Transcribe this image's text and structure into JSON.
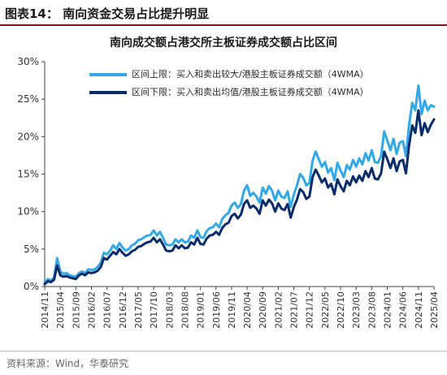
{
  "figure_title": "图表14：  南向资金交易占比提升明显",
  "source": "资料来源：Wind，华泰研究",
  "colors": {
    "upper": "#32a8e6",
    "lower": "#0b2c6b",
    "accent_rule": "#8a1414"
  },
  "chart_data": {
    "type": "line",
    "title": "南向成交额占港交所主板证券成交额占比区间",
    "xlabel": "",
    "ylabel": "",
    "ylim": [
      0,
      30
    ],
    "yticks": [
      "0%",
      "5%",
      "10%",
      "15%",
      "20%",
      "25%",
      "30%"
    ],
    "xticks": [
      "2014/11",
      "2015/04",
      "2015/09",
      "2016/02",
      "2016/07",
      "2016/12",
      "2017/05",
      "2017/10",
      "2018/03",
      "2018/08",
      "2019/01",
      "2019/06",
      "2019/11",
      "2020/04",
      "2020/09",
      "2021/02",
      "2021/07",
      "2021/12",
      "2022/05",
      "2022/10",
      "2023/03",
      "2023/08",
      "2024/01",
      "2024/06",
      "2024/11",
      "2025/04"
    ],
    "grid": false,
    "legend_position": "top-left",
    "x_unit": "months since 2014/11",
    "series": [
      {
        "name": "区间上限：买入和卖出较大/港股主板证券成交额（4WMA）",
        "x": [
          0,
          1,
          2,
          3,
          4,
          5,
          6,
          7,
          8,
          9,
          10,
          11,
          12,
          13,
          14,
          15,
          16,
          17,
          18,
          19,
          20,
          21,
          22,
          23,
          24,
          25,
          26,
          27,
          28,
          29,
          30,
          31,
          32,
          33,
          34,
          35,
          36,
          37,
          38,
          39,
          40,
          41,
          42,
          43,
          44,
          45,
          46,
          47,
          48,
          49,
          50,
          51,
          52,
          53,
          54,
          55,
          56,
          57,
          58,
          59,
          60,
          61,
          62,
          63,
          64,
          65,
          66,
          67,
          68,
          69,
          70,
          71,
          72,
          73,
          74,
          75,
          76,
          77,
          78,
          79,
          80,
          81,
          82,
          83,
          84,
          85,
          86,
          87,
          88,
          89,
          90,
          91,
          92,
          93,
          94,
          95,
          96,
          97,
          98,
          99,
          100,
          101,
          102,
          103,
          104,
          105,
          106,
          107,
          108,
          109,
          110,
          111,
          112,
          113,
          114,
          115,
          116,
          117,
          118,
          119,
          120,
          121,
          122,
          123,
          124,
          125
        ],
        "values": [
          0.5,
          1.0,
          0.8,
          1.2,
          3.8,
          2.0,
          1.7,
          1.8,
          1.5,
          1.4,
          1.3,
          1.8,
          2.0,
          1.8,
          2.3,
          2.2,
          2.3,
          2.6,
          3.2,
          4.5,
          4.3,
          4.8,
          5.5,
          5.0,
          5.8,
          5.2,
          4.8,
          5.0,
          5.5,
          5.7,
          6.2,
          6.3,
          6.6,
          6.8,
          6.9,
          7.5,
          6.8,
          7.3,
          6.5,
          5.6,
          5.5,
          5.6,
          6.3,
          5.9,
          6.3,
          5.9,
          6.0,
          6.8,
          6.5,
          7.5,
          6.6,
          6.5,
          7.4,
          7.8,
          7.9,
          8.4,
          7.9,
          9.0,
          9.5,
          9.8,
          10.8,
          11.2,
          10.5,
          11.0,
          12.8,
          13.5,
          12.1,
          12.5,
          12.0,
          11.2,
          13.2,
          12.4,
          13.4,
          12.8,
          11.5,
          12.8,
          12.0,
          11.8,
          12.7,
          10.6,
          12.3,
          13.5,
          15.0,
          14.5,
          13.5,
          13.8,
          16.8,
          18.0,
          17.0,
          16.0,
          16.6,
          15.2,
          15.8,
          14.2,
          16.5,
          15.5,
          14.6,
          16.2,
          15.6,
          16.9,
          16.0,
          17.1,
          16.3,
          17.8,
          16.8,
          18.2,
          16.6,
          16.5,
          17.4,
          20.7,
          19.5,
          18.2,
          19.7,
          17.7,
          19.2,
          19.4,
          17.4,
          21.5,
          24.5,
          23.5,
          26.8,
          23.0,
          24.8,
          23.5,
          24.2,
          24.0
        ]
      },
      {
        "name": "区间下限：买入和卖出均值/港股主板证券成交额（4WMA）",
        "x": [
          0,
          1,
          2,
          3,
          4,
          5,
          6,
          7,
          8,
          9,
          10,
          11,
          12,
          13,
          14,
          15,
          16,
          17,
          18,
          19,
          20,
          21,
          22,
          23,
          24,
          25,
          26,
          27,
          28,
          29,
          30,
          31,
          32,
          33,
          34,
          35,
          36,
          37,
          38,
          39,
          40,
          41,
          42,
          43,
          44,
          45,
          46,
          47,
          48,
          49,
          50,
          51,
          52,
          53,
          54,
          55,
          56,
          57,
          58,
          59,
          60,
          61,
          62,
          63,
          64,
          65,
          66,
          67,
          68,
          69,
          70,
          71,
          72,
          73,
          74,
          75,
          76,
          77,
          78,
          79,
          80,
          81,
          82,
          83,
          84,
          85,
          86,
          87,
          88,
          89,
          90,
          91,
          92,
          93,
          94,
          95,
          96,
          97,
          98,
          99,
          100,
          101,
          102,
          103,
          104,
          105,
          106,
          107,
          108,
          109,
          110,
          111,
          112,
          113,
          114,
          115,
          116,
          117,
          118,
          119,
          120,
          121,
          122,
          123,
          124,
          125
        ],
        "values": [
          0.3,
          0.7,
          0.6,
          0.9,
          2.8,
          1.5,
          1.3,
          1.4,
          1.2,
          1.1,
          1.0,
          1.5,
          1.7,
          1.5,
          1.9,
          1.8,
          1.9,
          2.1,
          2.6,
          3.8,
          3.6,
          4.1,
          4.6,
          4.3,
          5.0,
          4.5,
          4.1,
          4.3,
          4.7,
          4.9,
          5.3,
          5.4,
          5.7,
          5.9,
          6.0,
          6.5,
          5.9,
          6.3,
          5.6,
          4.8,
          4.7,
          4.8,
          5.5,
          5.1,
          5.5,
          5.1,
          5.2,
          5.9,
          5.6,
          6.5,
          5.7,
          5.6,
          6.4,
          6.8,
          6.9,
          7.3,
          6.9,
          7.8,
          8.3,
          8.5,
          9.4,
          9.7,
          9.1,
          9.6,
          11.0,
          11.5,
          10.5,
          10.8,
          10.4,
          9.7,
          11.5,
          10.8,
          11.6,
          11.1,
          10.0,
          11.1,
          10.4,
          10.2,
          11.0,
          9.2,
          10.6,
          11.6,
          13.0,
          12.6,
          11.7,
          12.0,
          14.6,
          15.6,
          14.8,
          13.9,
          14.4,
          13.2,
          13.7,
          12.3,
          14.3,
          13.4,
          12.7,
          14.1,
          13.5,
          14.7,
          13.9,
          14.8,
          14.1,
          15.4,
          14.6,
          15.8,
          14.4,
          14.3,
          15.1,
          18.0,
          17.0,
          15.8,
          17.1,
          15.4,
          16.7,
          16.9,
          15.1,
          18.8,
          21.5,
          20.5,
          23.5,
          20.2,
          21.8,
          20.6,
          21.6,
          22.3
        ]
      }
    ]
  }
}
